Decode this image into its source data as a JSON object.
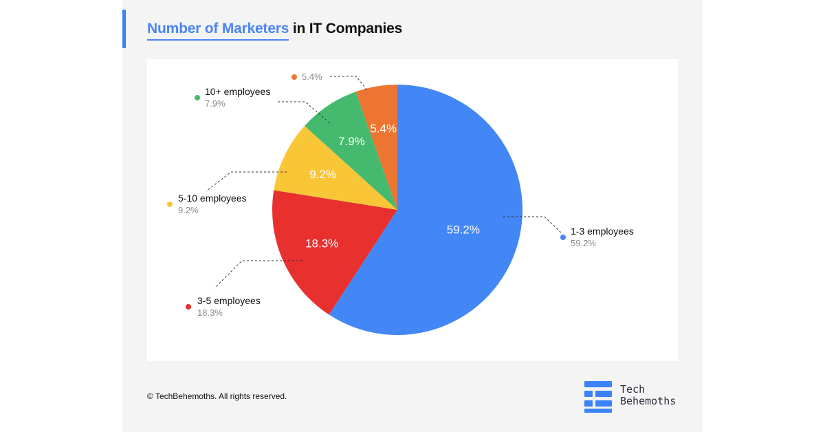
{
  "header": {
    "title_highlight": "Number of Marketers",
    "title_rest": " in IT Companies"
  },
  "footer": {
    "copyright": "© TechBehemoths. All rights reserved."
  },
  "brand": {
    "line1": "Tech",
    "line2": "Behemoths",
    "logo_icon": "tech-behemoths-logo-icon",
    "color": "#3b82f6"
  },
  "chart_data": {
    "type": "pie",
    "title": "Number of Marketers in IT Companies",
    "start": "12 o'clock, clockwise",
    "slices": [
      {
        "label": "1-3 employees",
        "value": 59.2,
        "display": "59.2%",
        "color": "#4287f5"
      },
      {
        "label": "3-5 employees",
        "value": 18.3,
        "display": "18.3%",
        "color": "#e8302f"
      },
      {
        "label": "5-10 employees",
        "value": 9.2,
        "display": "9.2%",
        "color": "#f9c638"
      },
      {
        "label": "10+ employees",
        "value": 7.9,
        "display": "7.9%",
        "color": "#45ba6f"
      },
      {
        "label": "",
        "value": 5.4,
        "display": "5.4%",
        "color": "#ec7532"
      }
    ]
  }
}
